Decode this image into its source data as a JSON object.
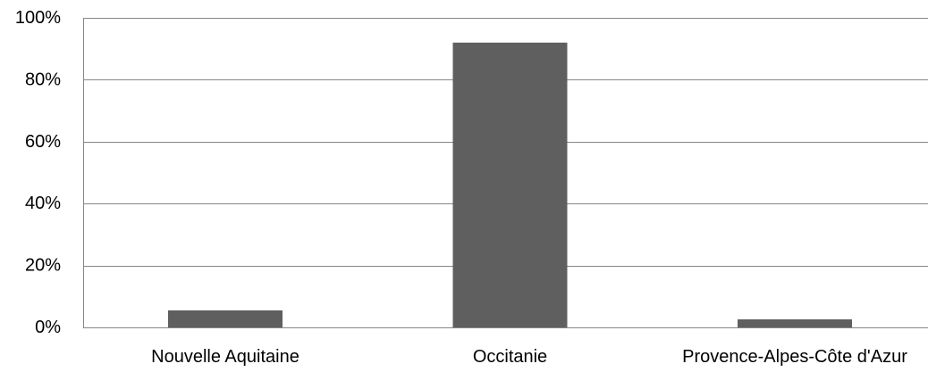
{
  "chart_data": {
    "type": "bar",
    "title": "",
    "xlabel": "",
    "ylabel": "",
    "categories": [
      "Nouvelle Aquitaine",
      "Occitanie",
      "Provence-Alpes-Côte d'Azur"
    ],
    "values": [
      5.5,
      92,
      2.6
    ],
    "ylim": [
      0,
      100
    ],
    "yticks": [
      0,
      20,
      40,
      60,
      80,
      100
    ],
    "ytick_labels": [
      "0%",
      "20%",
      "40%",
      "60%",
      "80%",
      "100%"
    ],
    "grid": true,
    "legend": "none",
    "colors": {
      "bar": "#5f5f5f",
      "grid": "#868686"
    }
  }
}
